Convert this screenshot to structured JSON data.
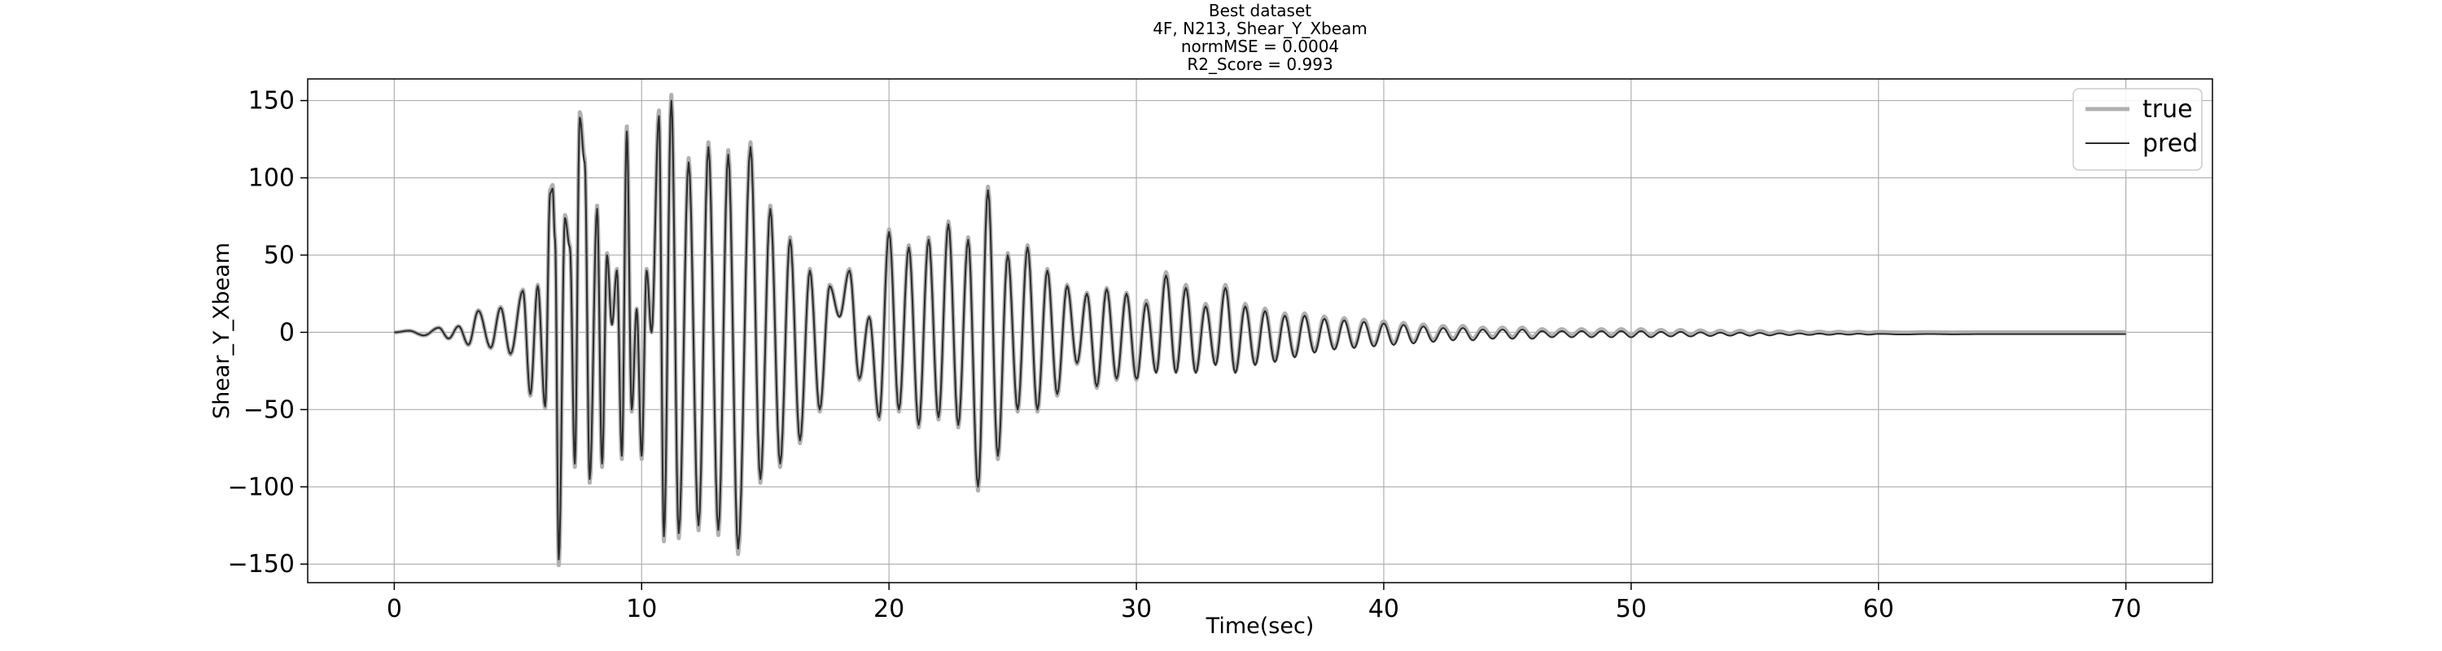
{
  "chart_data": {
    "type": "line",
    "title_lines": [
      "Best dataset",
      "4F, N213, Shear_Y_Xbeam",
      "normMSE = 0.0004",
      "R2_Score = 0.993"
    ],
    "xlabel": "Time(sec)",
    "ylabel": "Shear_Y_Xbeam",
    "xlim": [
      -3.5,
      73.5
    ],
    "ylim": [
      -162,
      164
    ],
    "xticks": [
      0,
      10,
      20,
      30,
      40,
      50,
      60,
      70
    ],
    "yticks": [
      -150,
      -100,
      -50,
      0,
      50,
      100,
      150
    ],
    "xtick_labels": [
      "0",
      "10",
      "20",
      "30",
      "40",
      "50",
      "60",
      "70"
    ],
    "ytick_labels": [
      "−150",
      "−100",
      "−50",
      "0",
      "50",
      "100",
      "150"
    ],
    "grid": true,
    "legend_position": "top-right",
    "series": [
      {
        "name": "true",
        "color": "#b0b0b0"
      },
      {
        "name": "pred",
        "color": "#2b2b2b"
      }
    ],
    "peaks_pred": [
      [
        0,
        0
      ],
      [
        0.6,
        1
      ],
      [
        1.2,
        -2
      ],
      [
        1.8,
        3
      ],
      [
        2.2,
        -4
      ],
      [
        2.6,
        4
      ],
      [
        3.0,
        -8
      ],
      [
        3.4,
        14
      ],
      [
        3.9,
        -10
      ],
      [
        4.3,
        16
      ],
      [
        4.7,
        -14
      ],
      [
        5.2,
        27
      ],
      [
        5.5,
        -40
      ],
      [
        5.8,
        30
      ],
      [
        6.1,
        -48
      ],
      [
        6.3,
        90
      ],
      [
        6.4,
        93
      ],
      [
        6.5,
        60
      ],
      [
        6.65,
        -147
      ],
      [
        6.9,
        74
      ],
      [
        7.1,
        55
      ],
      [
        7.3,
        -85
      ],
      [
        7.5,
        139
      ],
      [
        7.7,
        110
      ],
      [
        7.9,
        -95
      ],
      [
        8.2,
        80
      ],
      [
        8.4,
        -85
      ],
      [
        8.6,
        50
      ],
      [
        8.8,
        5
      ],
      [
        9.0,
        40
      ],
      [
        9.2,
        -80
      ],
      [
        9.4,
        130
      ],
      [
        9.6,
        -50
      ],
      [
        9.8,
        15
      ],
      [
        10.0,
        -80
      ],
      [
        10.2,
        40
      ],
      [
        10.4,
        0
      ],
      [
        10.7,
        140
      ],
      [
        10.9,
        -132
      ],
      [
        11.2,
        150
      ],
      [
        11.5,
        -130
      ],
      [
        11.9,
        110
      ],
      [
        12.3,
        -125
      ],
      [
        12.7,
        120
      ],
      [
        13.1,
        -128
      ],
      [
        13.5,
        115
      ],
      [
        13.9,
        -140
      ],
      [
        14.4,
        120
      ],
      [
        14.8,
        -95
      ],
      [
        15.2,
        80
      ],
      [
        15.6,
        -85
      ],
      [
        16.0,
        60
      ],
      [
        16.4,
        -70
      ],
      [
        16.8,
        40
      ],
      [
        17.2,
        -50
      ],
      [
        17.6,
        30
      ],
      [
        18.0,
        10
      ],
      [
        18.4,
        40
      ],
      [
        18.8,
        -30
      ],
      [
        19.2,
        10
      ],
      [
        19.6,
        -55
      ],
      [
        20.0,
        65
      ],
      [
        20.4,
        -50
      ],
      [
        20.8,
        55
      ],
      [
        21.2,
        -60
      ],
      [
        21.6,
        60
      ],
      [
        22.0,
        -55
      ],
      [
        22.4,
        70
      ],
      [
        22.8,
        -60
      ],
      [
        23.2,
        60
      ],
      [
        23.6,
        -100
      ],
      [
        24.0,
        92
      ],
      [
        24.4,
        -80
      ],
      [
        24.8,
        50
      ],
      [
        25.2,
        -50
      ],
      [
        25.6,
        55
      ],
      [
        26.0,
        -50
      ],
      [
        26.4,
        40
      ],
      [
        26.8,
        -40
      ],
      [
        27.2,
        30
      ],
      [
        27.6,
        -20
      ],
      [
        28.0,
        25
      ],
      [
        28.4,
        -35
      ],
      [
        28.8,
        28
      ],
      [
        29.2,
        -30
      ],
      [
        29.6,
        25
      ],
      [
        30.0,
        -30
      ],
      [
        30.4,
        20
      ],
      [
        30.8,
        -25
      ],
      [
        31.2,
        38
      ],
      [
        31.6,
        -25
      ],
      [
        32.0,
        30
      ],
      [
        32.4,
        -25
      ],
      [
        32.8,
        18
      ],
      [
        33.2,
        -20
      ],
      [
        33.6,
        30
      ],
      [
        34.0,
        -25
      ],
      [
        34.4,
        18
      ],
      [
        34.8,
        -20
      ],
      [
        35.2,
        15
      ],
      [
        35.6,
        -18
      ],
      [
        36.0,
        12
      ],
      [
        36.4,
        -15
      ],
      [
        36.8,
        12
      ],
      [
        37.2,
        -12
      ],
      [
        37.6,
        10
      ],
      [
        38.0,
        -10
      ],
      [
        38.4,
        9
      ],
      [
        38.8,
        -9
      ],
      [
        39.2,
        8
      ],
      [
        39.6,
        -8
      ],
      [
        40.0,
        7
      ],
      [
        40.4,
        -7
      ],
      [
        40.8,
        6
      ],
      [
        41.2,
        -6
      ],
      [
        41.6,
        5
      ],
      [
        42.0,
        -5
      ],
      [
        42.4,
        4
      ],
      [
        42.8,
        -4
      ],
      [
        43.2,
        4
      ],
      [
        43.6,
        -4
      ],
      [
        44.0,
        3
      ],
      [
        44.4,
        -3
      ],
      [
        44.8,
        3
      ],
      [
        45.2,
        -3
      ],
      [
        45.6,
        3
      ],
      [
        46.0,
        -3
      ],
      [
        46.4,
        2
      ],
      [
        46.8,
        -2
      ],
      [
        47.2,
        2
      ],
      [
        47.6,
        -2
      ],
      [
        48.0,
        2
      ],
      [
        48.4,
        -2
      ],
      [
        48.8,
        2
      ],
      [
        49.2,
        -2
      ],
      [
        49.6,
        2
      ],
      [
        50.0,
        -2
      ],
      [
        50.4,
        2
      ],
      [
        50.8,
        -2
      ],
      [
        51.2,
        1.5
      ],
      [
        51.6,
        -1.5
      ],
      [
        52.0,
        1.5
      ],
      [
        52.4,
        -1.5
      ],
      [
        52.8,
        1.2
      ],
      [
        53.2,
        -1.2
      ],
      [
        53.6,
        1
      ],
      [
        54.0,
        -1
      ],
      [
        54.4,
        1
      ],
      [
        54.8,
        -1
      ],
      [
        55.2,
        0.8
      ],
      [
        55.6,
        -0.8
      ],
      [
        56.0,
        0.6
      ],
      [
        56.4,
        -0.6
      ],
      [
        56.8,
        0.5
      ],
      [
        57.2,
        -0.5
      ],
      [
        57.6,
        0.4
      ],
      [
        58.0,
        -0.4
      ],
      [
        58.4,
        0.3
      ],
      [
        58.8,
        -0.3
      ],
      [
        59.2,
        0.3
      ],
      [
        59.6,
        -0.3
      ],
      [
        60.0,
        0.2
      ],
      [
        61,
        -0.2
      ],
      [
        62,
        0.1
      ],
      [
        63,
        -0.1
      ],
      [
        64,
        0
      ],
      [
        65,
        0
      ],
      [
        66,
        0
      ],
      [
        67,
        0
      ],
      [
        68,
        0
      ],
      [
        69,
        0
      ],
      [
        70,
        0
      ]
    ]
  }
}
